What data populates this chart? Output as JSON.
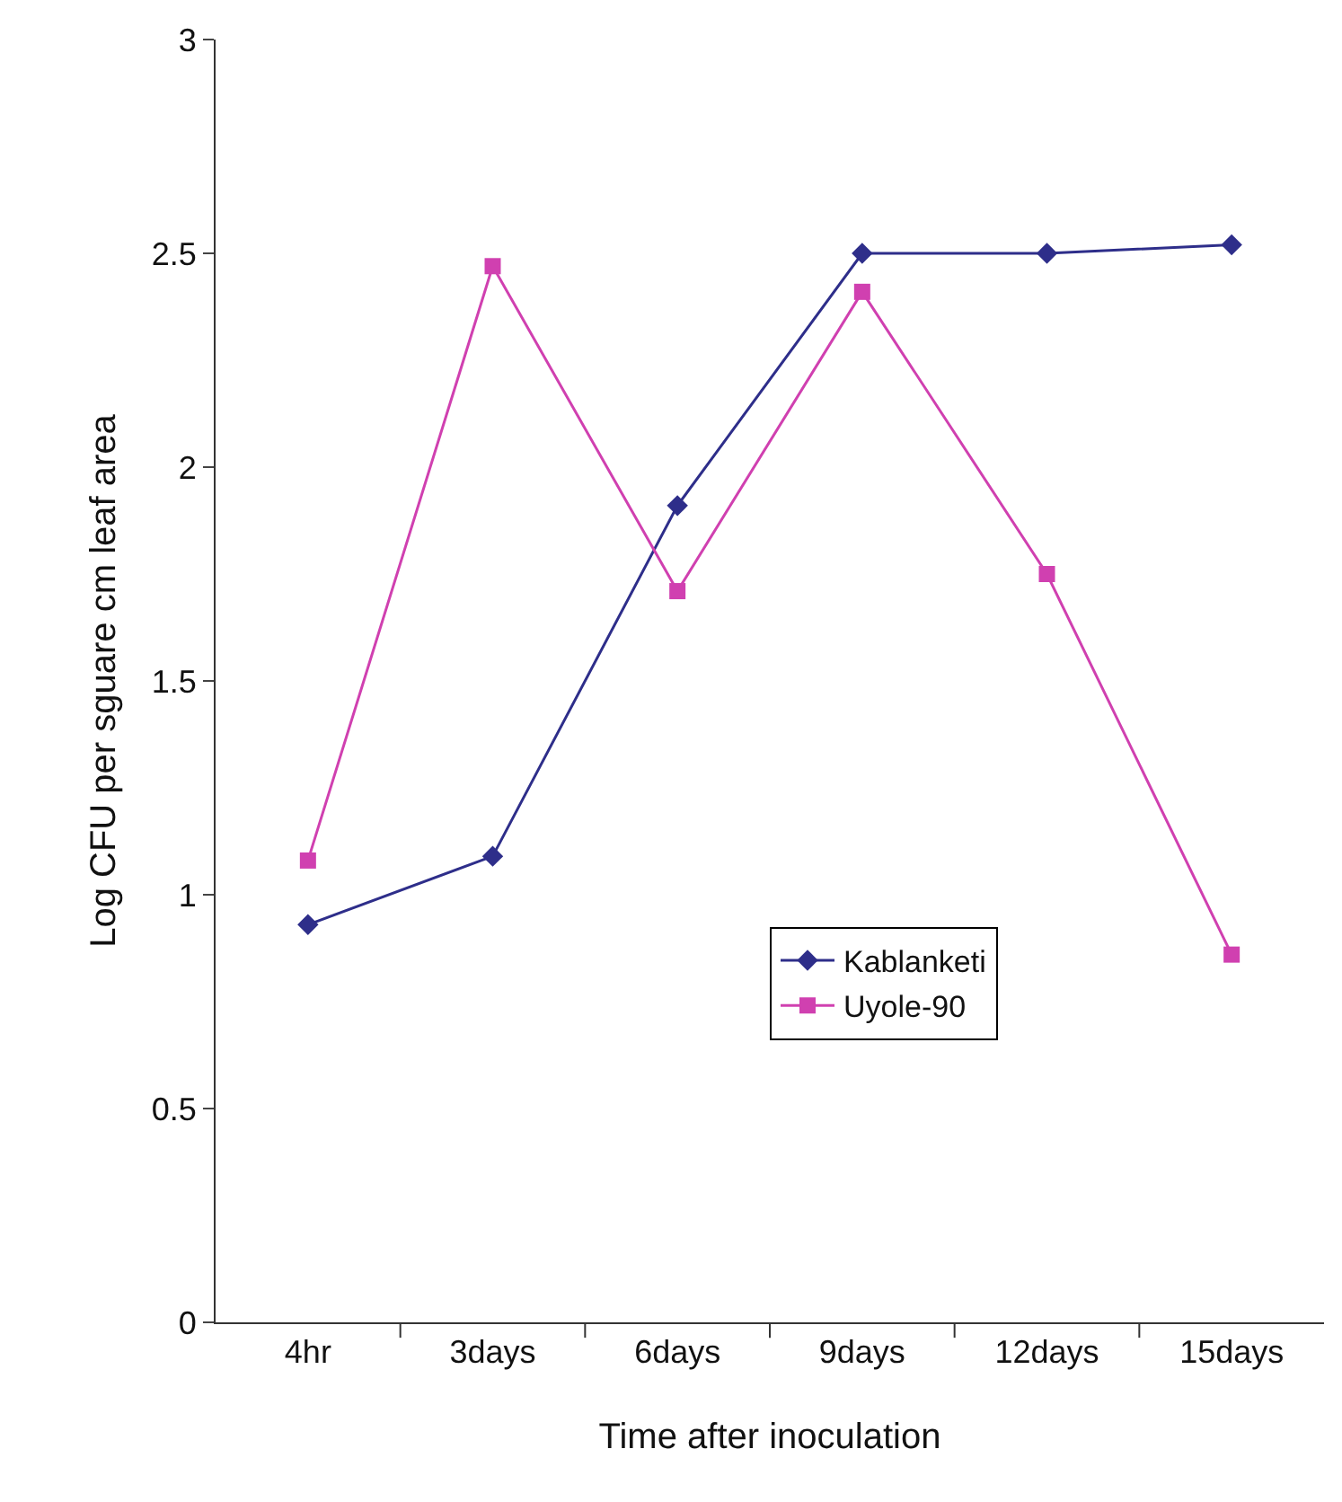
{
  "chart_data": {
    "type": "line",
    "xlabel": "Time after inoculation",
    "ylabel": "Log CFU per sguare cm leaf area",
    "categories": [
      "4hr",
      "3days",
      "6days",
      "9days",
      "12days",
      "15days"
    ],
    "series": [
      {
        "name": "Kablanketi",
        "color": "#2e2e8a",
        "marker": "diamond",
        "values": [
          0.93,
          1.09,
          1.91,
          2.5,
          2.5,
          2.52
        ]
      },
      {
        "name": "Uyole-90",
        "color": "#d040b0",
        "marker": "square",
        "values": [
          1.08,
          2.47,
          1.71,
          2.41,
          1.75,
          0.86
        ]
      }
    ],
    "ylim": [
      0,
      3
    ],
    "yticks": [
      0,
      0.5,
      1,
      1.5,
      2,
      2.5,
      3
    ],
    "grid": false,
    "legend": "bottom right"
  }
}
